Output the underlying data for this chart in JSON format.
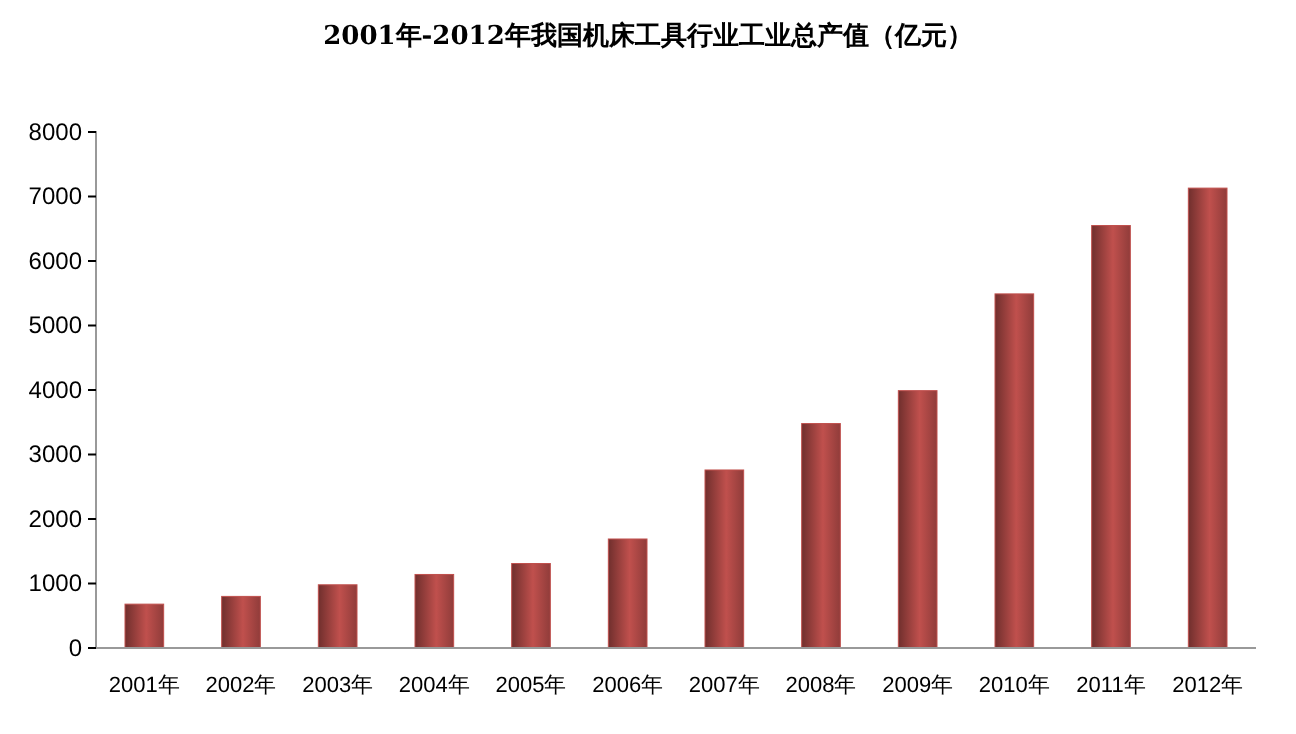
{
  "chart_data": {
    "type": "bar",
    "title": "2001年-2012年我国机床工具行业工业总产值（亿元）",
    "categories": [
      "2001年",
      "2002年",
      "2003年",
      "2004年",
      "2005年",
      "2006年",
      "2007年",
      "2008年",
      "2009年",
      "2010年",
      "2011年",
      "2012年"
    ],
    "values": [
      680,
      800,
      980,
      1140,
      1310,
      1690,
      2760,
      3480,
      3990,
      5490,
      6550,
      7130
    ],
    "color": "#c0504d",
    "ylim": [
      0,
      8000
    ],
    "yticks": [
      0,
      1000,
      2000,
      3000,
      4000,
      5000,
      6000,
      7000,
      8000
    ],
    "grid": false,
    "legend": false
  }
}
